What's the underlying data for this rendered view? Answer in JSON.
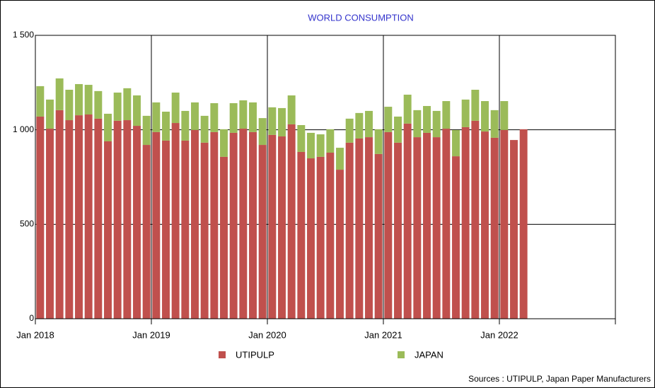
{
  "chart_data": {
    "type": "stacked-bar",
    "title": "WORLD CONSUMPTION",
    "source": "Sources : UTIPULP, Japan Paper Manufacturers",
    "categories": [
      "Jan 2018",
      null,
      null,
      null,
      null,
      null,
      null,
      null,
      null,
      null,
      null,
      null,
      "Jan 2019",
      null,
      null,
      null,
      null,
      null,
      null,
      null,
      null,
      null,
      null,
      null,
      "Jan 2020",
      null,
      null,
      null,
      null,
      null,
      null,
      null,
      null,
      null,
      null,
      null,
      "Jan 2021",
      null,
      null,
      null,
      null,
      null,
      null,
      null,
      null,
      null,
      null,
      null,
      "Jan 2022",
      null,
      null,
      null,
      null,
      null,
      null,
      null,
      null,
      null,
      null,
      null
    ],
    "series": [
      {
        "name": "UTIPULP",
        "color": "#c0504d",
        "values": [
          1070,
          1006,
          1104,
          1051,
          1077,
          1081,
          1059,
          939,
          1048,
          1051,
          1021,
          920,
          988,
          943,
          1036,
          943,
          999,
          932,
          988,
          857,
          984,
          1006,
          988,
          920,
          973,
          965,
          1029,
          883,
          849,
          857,
          879,
          789,
          932,
          954,
          961,
          872,
          988,
          932,
          1033,
          961,
          984,
          961,
          1006,
          860,
          1014,
          1048,
          991,
          958,
          999,
          946,
          1003,
          null,
          null,
          null,
          null,
          null,
          null,
          null,
          null,
          null
        ]
      },
      {
        "name": "JAPAN",
        "color": "#9bbb59",
        "values": [
          161,
          154,
          168,
          161,
          165,
          157,
          146,
          146,
          149,
          169,
          161,
          154,
          157,
          153,
          161,
          157,
          146,
          142,
          153,
          146,
          157,
          150,
          157,
          142,
          146,
          150,
          153,
          142,
          135,
          119,
          124,
          116,
          127,
          135,
          139,
          131,
          134,
          138,
          153,
          143,
          142,
          139,
          146,
          139,
          146,
          164,
          161,
          146,
          153,
          null,
          null,
          null,
          null,
          null,
          null,
          null,
          null,
          null,
          null,
          null
        ]
      }
    ],
    "ylim": [
      0,
      1500
    ],
    "yticks": [
      0,
      500,
      {
        "value": 1000,
        "label": "1 000"
      },
      {
        "value": 1500,
        "label": "1 500"
      }
    ],
    "grid": true
  }
}
